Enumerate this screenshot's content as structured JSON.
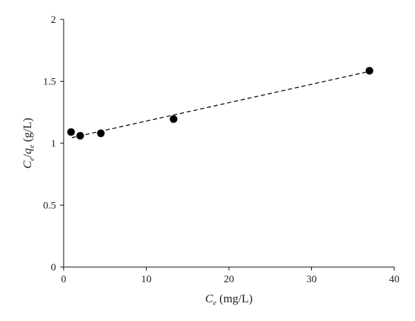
{
  "chart_data": {
    "type": "scatter",
    "x": [
      0.9,
      2.0,
      4.5,
      13.3,
      37.0
    ],
    "y": [
      1.09,
      1.06,
      1.08,
      1.195,
      1.585
    ],
    "trendline": {
      "style": "dashed",
      "x": [
        1.0,
        37.0
      ],
      "y": [
        1.045,
        1.58
      ]
    },
    "xlim": [
      0,
      40
    ],
    "ylim": [
      0,
      2
    ],
    "xticks": [
      "0",
      "10",
      "20",
      "30",
      "40"
    ],
    "yticks": [
      "0",
      "0.5",
      "1",
      "1.5",
      "2"
    ],
    "xlabel": {
      "var": "C",
      "sub": "e",
      "unit": " (mg/L)"
    },
    "ylabel": {
      "var1": "C",
      "sub1": "e",
      "slash": "/",
      "var2": "q",
      "sub2": "e",
      "unit": " (g/L)"
    },
    "title": "",
    "grid": false,
    "legend": "none"
  }
}
